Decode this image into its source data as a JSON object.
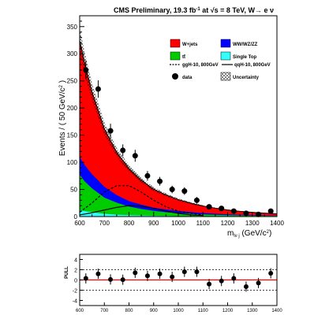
{
  "chart_data": [
    {
      "type": "stacked-area",
      "title": "CMS Preliminary, 19.3 fb",
      "title_sup": "-1",
      "title_rest": " at √s = 8 TeV, W→ e ν",
      "xlabel_main": "m",
      "xlabel_sub": "lν j",
      "xlabel_units": " (GeV/c",
      "xlabel_units_sup": "2",
      "xlabel_end": ")",
      "ylabel": "Events / ( 50 GeV/c",
      "ylabel_sup": "2",
      "ylabel_end": " )",
      "xlim": [
        600,
        1400
      ],
      "ylim": [
        0,
        370
      ],
      "x_ticks": [
        600,
        700,
        800,
        900,
        1000,
        1100,
        1200,
        1300,
        1400
      ],
      "x_tick_labels": [
        "600",
        "700",
        "800",
        "900",
        "1000",
        "1100",
        "1200",
        "1300",
        "1400"
      ],
      "y_ticks": [
        0,
        50,
        100,
        150,
        200,
        250,
        300,
        350
      ],
      "y_tick_labels": [
        "0",
        "50",
        "100",
        "150",
        "200",
        "250",
        "300",
        "350"
      ],
      "background_x": [
        600,
        620,
        650,
        700,
        750,
        800,
        850,
        900,
        950,
        1000,
        1050,
        1100,
        1150,
        1200,
        1250,
        1300,
        1350,
        1400
      ],
      "stack": [
        {
          "name": "Single Top",
          "color": "#33ffff",
          "values": [
            12,
            10,
            8,
            5,
            3.5,
            2.5,
            2,
            1.5,
            1,
            0.8,
            0.6,
            0.5,
            0.4,
            0.3,
            0.3,
            0.2,
            0.2,
            0.2
          ]
        },
        {
          "name": "tt̄",
          "color": "#00cc00",
          "values": [
            65,
            55,
            44,
            30,
            22,
            16,
            12,
            9,
            7,
            5.5,
            4.5,
            3.5,
            2.8,
            2.2,
            1.8,
            1.5,
            1.2,
            1
          ]
        },
        {
          "name": "WW/WZ/ZZ",
          "color": "#0000ff",
          "values": [
            33,
            30,
            26,
            20,
            14,
            10,
            8,
            6,
            5,
            4,
            3.2,
            2.5,
            2,
            1.6,
            1.2,
            1,
            0.8,
            0.6
          ]
        },
        {
          "name": "W+jets",
          "color": "#ff0000",
          "values": [
            215,
            188,
            152,
            107,
            79,
            60,
            45,
            34,
            27,
            21,
            16.5,
            13,
            10.3,
            8.1,
            6.4,
            5.1,
            4.1,
            3.3
          ]
        }
      ],
      "uncertainty_label": "Uncertainty",
      "data": {
        "name": "data",
        "x": [
          625,
          675,
          725,
          775,
          825,
          875,
          925,
          975,
          1025,
          1075,
          1125,
          1175,
          1225,
          1275,
          1325,
          1375
        ],
        "y": [
          270,
          235,
          158,
          122,
          112,
          75,
          65,
          50,
          47,
          30,
          18,
          15,
          10,
          6,
          4,
          10
        ],
        "err": [
          17,
          16,
          13,
          11,
          11,
          9,
          8,
          7,
          7,
          6,
          4,
          4,
          3,
          2.5,
          2,
          3
        ]
      },
      "signals": [
        {
          "name": "ggH-10, 800GeV",
          "style": "dashed",
          "x": [
            600,
            650,
            700,
            750,
            800,
            850,
            900,
            950,
            1000,
            1050,
            1100
          ],
          "y": [
            8,
            25,
            45,
            57,
            57,
            45,
            30,
            18,
            10,
            6,
            3
          ]
        },
        {
          "name": "qqH-10, 800GeV",
          "style": "solid",
          "x": [
            600,
            650,
            700,
            750,
            800,
            850,
            900,
            950,
            1000,
            1050,
            1100
          ],
          "y": [
            3,
            7,
            12,
            17,
            20,
            19,
            15,
            10,
            6,
            3,
            2
          ]
        }
      ]
    },
    {
      "type": "scatter",
      "ylabel": "PULL",
      "xlim": [
        600,
        1400
      ],
      "ylim": [
        -5,
        5
      ],
      "x_ticks": [
        600,
        700,
        800,
        900,
        1000,
        1100,
        1200,
        1300,
        1400
      ],
      "x_tick_labels": [
        "600",
        "700",
        "800",
        "900",
        "1000",
        "1100",
        "1200",
        "1300",
        "1400"
      ],
      "y_ticks": [
        -4,
        -2,
        0,
        2,
        4
      ],
      "y_tick_labels": [
        "-4",
        "-2",
        "0",
        "2",
        "4"
      ],
      "reference_lines": [
        2,
        -2
      ],
      "x": [
        625,
        675,
        725,
        775,
        825,
        875,
        925,
        975,
        1025,
        1075,
        1125,
        1175,
        1225,
        1275,
        1325,
        1375
      ],
      "y": [
        0.3,
        1.2,
        0.1,
        0.05,
        1.4,
        0.8,
        1.2,
        0.6,
        1.6,
        1.6,
        -0.8,
        -0.2,
        0.3,
        -1.3,
        -0.6,
        1.3
      ],
      "err": [
        1,
        1,
        1,
        1,
        1,
        1,
        1,
        1,
        1,
        1,
        1,
        1,
        1,
        1,
        1,
        1
      ]
    }
  ]
}
